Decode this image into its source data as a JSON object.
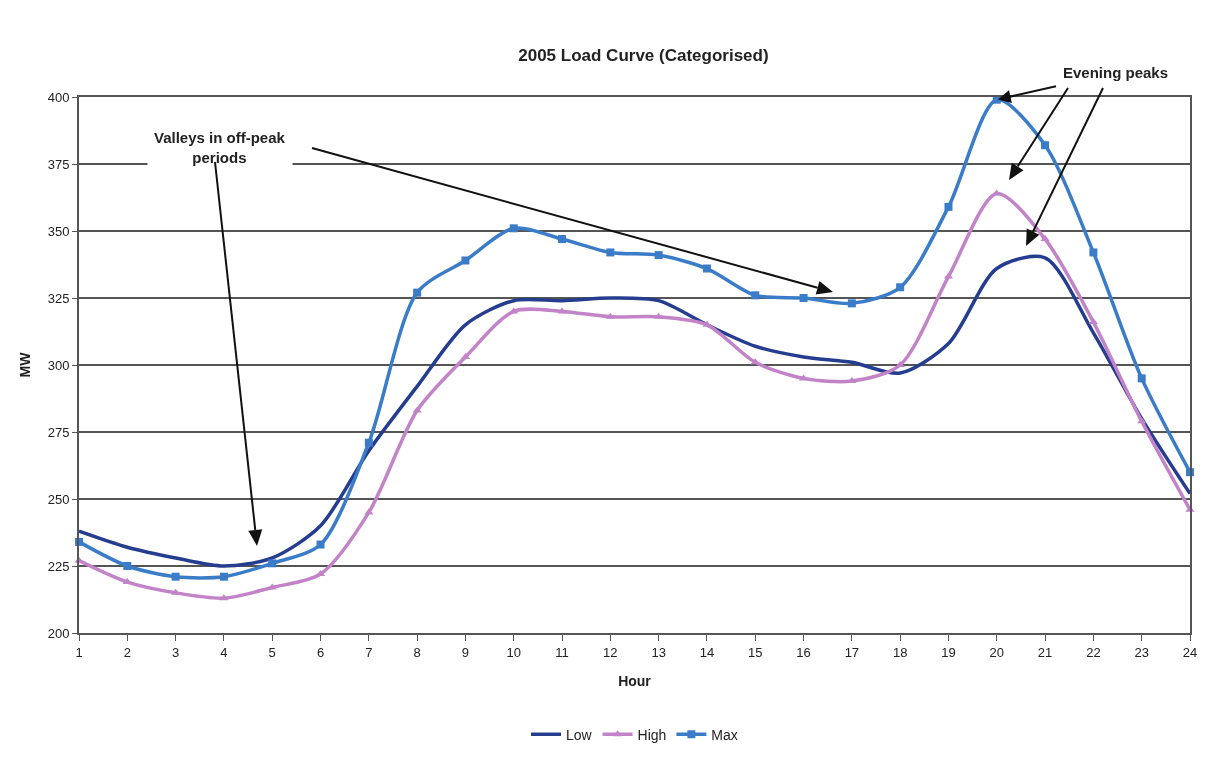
{
  "chart_data": {
    "type": "line",
    "title": "2005 Load Curve (Categorised)",
    "xlabel": "Hour",
    "ylabel": "MW",
    "x": [
      1,
      2,
      3,
      4,
      5,
      6,
      7,
      8,
      9,
      10,
      11,
      12,
      13,
      14,
      15,
      16,
      17,
      18,
      19,
      20,
      21,
      22,
      23,
      24
    ],
    "series": [
      {
        "name": "Low",
        "color": "#253d8f",
        "marker": "none",
        "values": [
          238,
          232,
          228,
          225,
          228,
          240,
          268,
          292,
          315,
          324,
          324,
          325,
          324,
          315,
          307,
          303,
          301,
          297,
          308,
          336,
          340,
          312,
          280,
          252
        ]
      },
      {
        "name": "High",
        "color": "#c283c8",
        "marker": "triangle",
        "values": [
          227,
          219,
          215,
          213,
          217,
          222,
          245,
          283,
          303,
          320,
          320,
          318,
          318,
          315,
          301,
          295,
          294,
          300,
          333,
          364,
          347,
          316,
          279,
          246
        ]
      },
      {
        "name": "Max",
        "color": "#3a7cc8",
        "marker": "square",
        "values": [
          234,
          225,
          221,
          221,
          226,
          233,
          271,
          327,
          339,
          351,
          347,
          342,
          341,
          336,
          326,
          325,
          323,
          329,
          359,
          399,
          382,
          342,
          295,
          260
        ]
      }
    ],
    "xlim": [
      1,
      24
    ],
    "xticks": [
      1,
      2,
      3,
      4,
      5,
      6,
      7,
      8,
      9,
      10,
      11,
      12,
      13,
      14,
      15,
      16,
      17,
      18,
      19,
      20,
      21,
      22,
      23,
      24
    ],
    "ylim": [
      200,
      400
    ],
    "yticks": [
      200,
      225,
      250,
      275,
      300,
      325,
      350,
      375,
      400
    ],
    "grid": "y",
    "legend": "bottom",
    "line_style": "solid",
    "annotations": [
      "Valleys in off-peak\nperiods",
      {
        "text": "Evening peaks",
        "x": 20,
        "y": 399
      }
    ]
  }
}
